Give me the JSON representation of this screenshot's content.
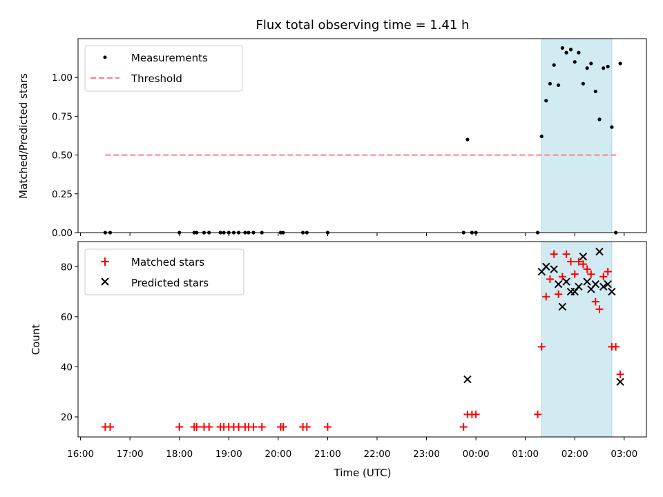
{
  "colors": {
    "measurement": "#000000",
    "threshold": "#ff7f7f",
    "matched": "#ff0000",
    "predicted": "#000000",
    "highlight_fill": "#add8e6"
  },
  "chart_data": [
    {
      "type": "scatter",
      "title": "Flux total observing time = 1.41 h",
      "ylabel": "Matched/Predicted stars",
      "ylim": [
        0,
        1.25
      ],
      "y_ticks": [
        0,
        0.25,
        0.5,
        0.75,
        1.0
      ],
      "y_tick_labels": [
        "0.00",
        "0.25",
        "0.50",
        "0.75",
        "1.00"
      ],
      "legend": {
        "placement": "top-left",
        "entries": [
          "Measurements",
          "Threshold"
        ]
      },
      "highlight_span": {
        "x0": 25.33,
        "x1": 26.75
      },
      "threshold": {
        "name": "Threshold",
        "x": [
          16.5,
          26.9
        ],
        "y": 0.5
      },
      "series": [
        {
          "name": "Measurements",
          "x": [
            16.5,
            16.6,
            18.0,
            18.3,
            18.35,
            18.5,
            18.6,
            18.83,
            18.9,
            19.0,
            19.1,
            19.2,
            19.33,
            19.4,
            19.5,
            19.67,
            20.05,
            20.1,
            20.5,
            20.58,
            21.0,
            23.75,
            23.83,
            23.92,
            24.0,
            25.25,
            25.33,
            25.42,
            25.5,
            25.58,
            25.67,
            25.75,
            25.83,
            25.92,
            26.0,
            26.08,
            26.17,
            26.25,
            26.33,
            26.42,
            26.5,
            26.58,
            26.67,
            26.75,
            26.83,
            26.92
          ],
          "y": [
            0,
            0,
            0,
            0,
            0,
            0,
            0,
            0,
            0,
            0,
            0,
            0,
            0,
            0,
            0,
            0,
            0,
            0,
            0,
            0,
            0,
            0,
            0.6,
            0,
            0,
            0,
            0.62,
            0.85,
            0.96,
            1.08,
            0.95,
            1.19,
            1.16,
            1.18,
            1.1,
            1.16,
            0.96,
            1.06,
            1.09,
            0.91,
            0.73,
            1.06,
            1.07,
            0.68,
            0,
            1.09
          ]
        }
      ]
    },
    {
      "type": "scatter",
      "xlabel": "Time (UTC)",
      "ylabel": "Count",
      "ylim": [
        12,
        90
      ],
      "xlim": [
        15.95,
        27.45
      ],
      "y_ticks": [
        20,
        40,
        60,
        80
      ],
      "y_tick_labels": [
        "20",
        "40",
        "60",
        "80"
      ],
      "x_ticks": [
        16,
        17,
        18,
        19,
        20,
        21,
        22,
        23,
        24,
        25,
        26,
        27
      ],
      "x_tick_labels": [
        "16:00",
        "17:00",
        "18:00",
        "19:00",
        "20:00",
        "21:00",
        "22:00",
        "23:00",
        "00:00",
        "01:00",
        "02:00",
        "03:00"
      ],
      "legend": {
        "placement": "top-left",
        "entries": [
          "Matched stars",
          "Predicted stars"
        ]
      },
      "highlight_span": {
        "x0": 25.33,
        "x1": 26.75
      },
      "series": [
        {
          "name": "Matched stars",
          "x": [
            16.5,
            16.6,
            18.0,
            18.3,
            18.35,
            18.5,
            18.6,
            18.83,
            18.9,
            19.0,
            19.1,
            19.2,
            19.33,
            19.4,
            19.5,
            19.67,
            20.05,
            20.1,
            20.5,
            20.58,
            21.0,
            23.75,
            23.83,
            23.92,
            24.0,
            25.25,
            25.33,
            25.42,
            25.5,
            25.58,
            25.67,
            25.75,
            25.83,
            25.92,
            26.0,
            26.08,
            26.17,
            26.25,
            26.33,
            26.42,
            26.5,
            26.58,
            26.67,
            26.75,
            26.83,
            26.92
          ],
          "y": [
            16,
            16,
            16,
            16,
            16,
            16,
            16,
            16,
            16,
            16,
            16,
            16,
            16,
            16,
            16,
            16,
            16,
            16,
            16,
            16,
            16,
            16,
            21,
            21,
            21,
            21,
            48,
            68,
            75,
            85,
            69,
            76,
            85,
            82,
            77,
            82,
            81,
            79,
            77,
            66,
            63,
            76,
            78,
            48,
            48,
            37
          ]
        },
        {
          "name": "Predicted stars",
          "x": [
            23.83,
            25.33,
            25.42,
            25.58,
            25.67,
            25.75,
            25.83,
            25.92,
            26.0,
            26.08,
            26.17,
            26.25,
            26.33,
            26.42,
            26.5,
            26.58,
            26.67,
            26.75,
            26.92
          ],
          "y": [
            35,
            78,
            80,
            79,
            73,
            64,
            74,
            70,
            70,
            72,
            84,
            74,
            71,
            73,
            86,
            72,
            73,
            70,
            34
          ]
        }
      ]
    }
  ]
}
